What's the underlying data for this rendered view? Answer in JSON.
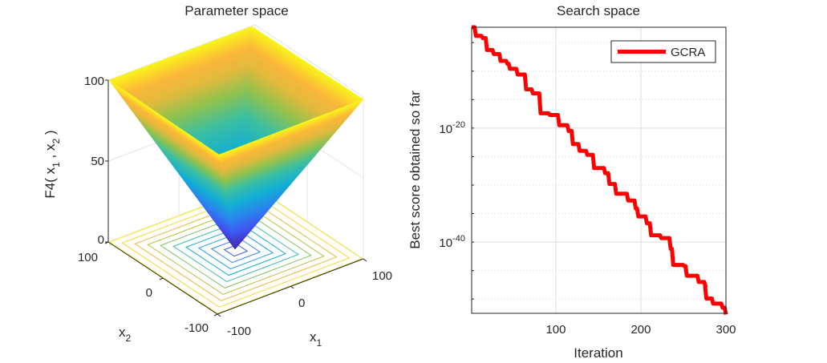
{
  "chart_data": [
    {
      "type": "surface",
      "title": "Parameter space",
      "function": "F4",
      "zlabel": "F4( x",
      "zlabel_parts": [
        "F4( x",
        "1",
        " , x",
        "2",
        " )"
      ],
      "xlabel": "x",
      "xlabel_sub": "1",
      "ylabel": "x",
      "ylabel_sub": "2",
      "xlim": [
        -100,
        100
      ],
      "ylim": [
        -100,
        100
      ],
      "zlim": [
        0,
        100
      ],
      "xticks": [
        "-100",
        "0",
        "100"
      ],
      "yticks": [
        "-100",
        "0",
        "100"
      ],
      "zticks": [
        "0",
        "50",
        "100"
      ],
      "contour_levels": 10,
      "colormap": "parula"
    },
    {
      "type": "line",
      "title": "Search space",
      "xlabel": "Iteration",
      "ylabel": "Best score obtained so far",
      "yscale": "log",
      "xlim": [
        1,
        300
      ],
      "ylim_log10": [
        -52.5,
        -2.3
      ],
      "xticks": [
        "100",
        "200",
        "300"
      ],
      "yticks": [
        {
          "base": "10",
          "exp": "-20"
        },
        {
          "base": "10",
          "exp": "-40"
        }
      ],
      "grid": true,
      "legend": {
        "position": "top-right",
        "entries": [
          "GCRA"
        ]
      },
      "series": [
        {
          "name": "GCRA",
          "color": "#ff0000",
          "x": [
            1,
            6,
            14,
            19,
            27,
            35,
            43,
            46,
            55,
            65,
            73,
            82,
            93,
            104,
            115,
            120,
            128,
            137,
            145,
            158,
            163,
            171,
            185,
            194,
            197,
            207,
            212,
            224,
            235,
            238,
            251,
            254,
            268,
            276,
            277,
            285,
            296,
            300
          ],
          "log10_y": [
            -2.3,
            -3.8,
            -4.2,
            -6.3,
            -7.0,
            -8.2,
            -8.7,
            -9.6,
            -10.6,
            -13.2,
            -13.9,
            -17.4,
            -17.7,
            -19.5,
            -20.5,
            -22.8,
            -24.0,
            -24.7,
            -27.0,
            -27.9,
            -29.8,
            -31.5,
            -32.7,
            -34.1,
            -35.5,
            -36.7,
            -38.8,
            -39.3,
            -41.2,
            -44.0,
            -44.2,
            -45.9,
            -47.0,
            -47.8,
            -49.9,
            -50.8,
            -51.5,
            -52.7
          ]
        }
      ]
    }
  ]
}
